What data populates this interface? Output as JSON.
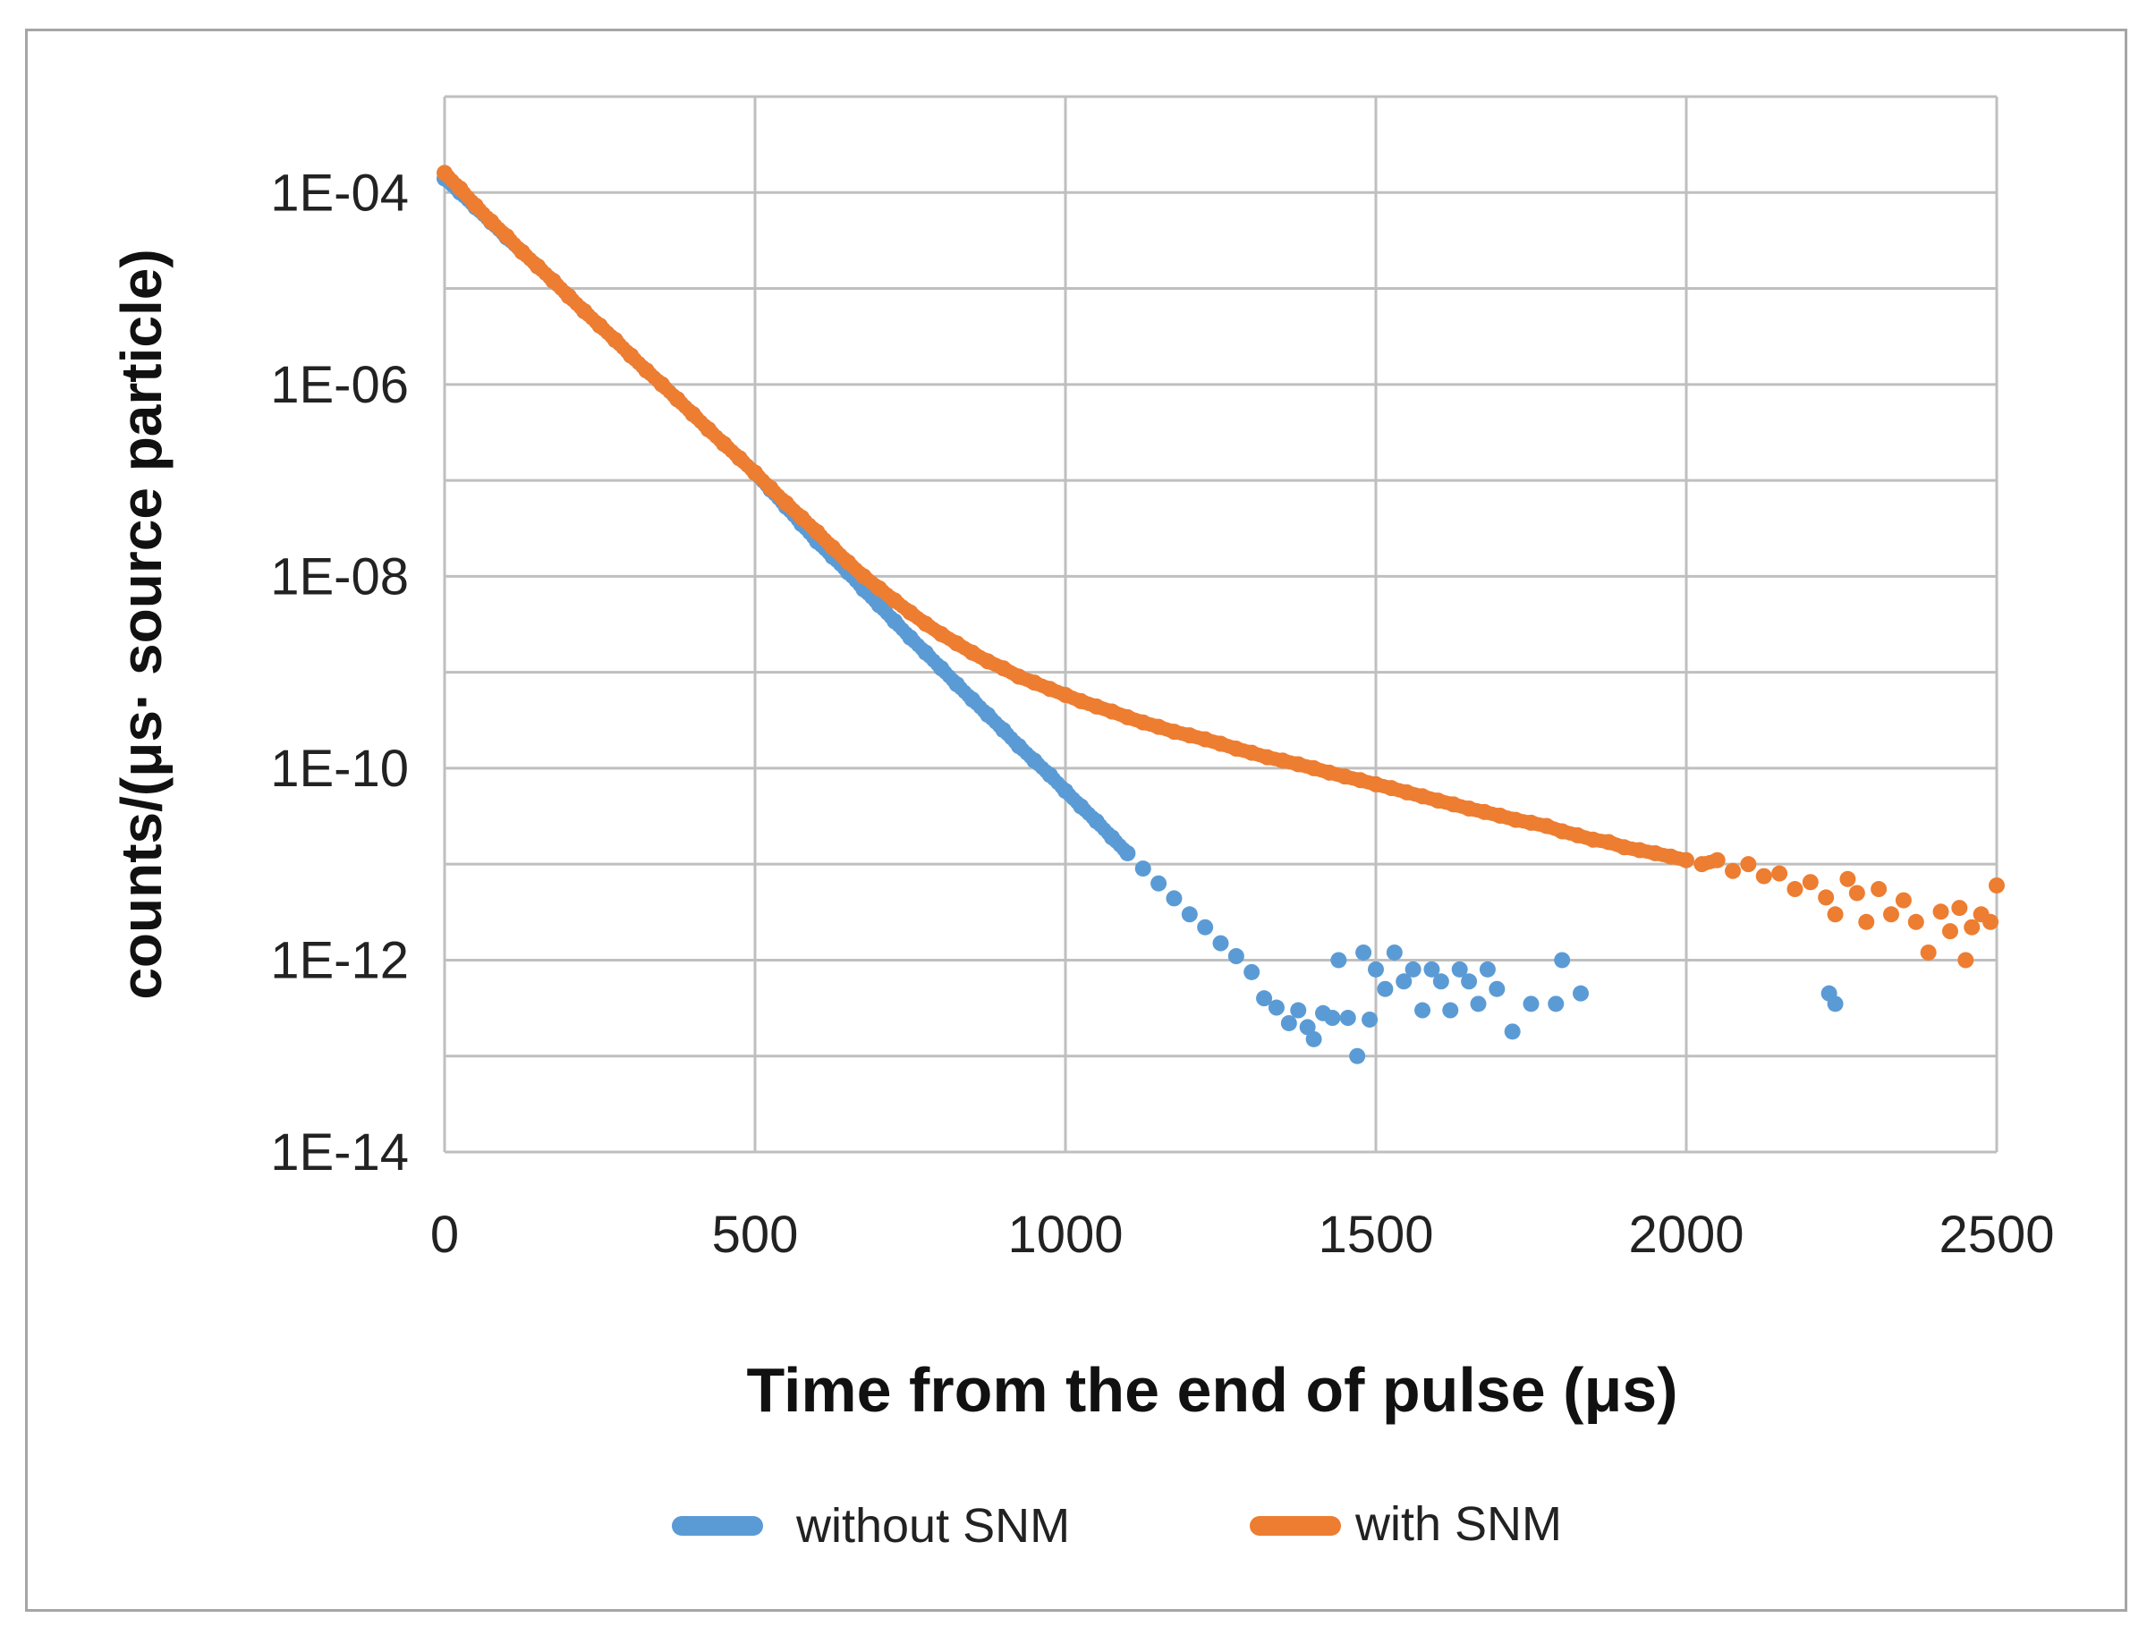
{
  "chart_data": {
    "type": "scatter",
    "title": "",
    "xlabel": "Time from the end of pulse (μs)",
    "ylabel": "counts/(μs· source particle)",
    "xlim": [
      0,
      2500
    ],
    "x_ticks": [
      "0",
      "500",
      "1000",
      "1500",
      "2000",
      "2500"
    ],
    "y_scale": "log",
    "ylim": [
      1e-14,
      0.001
    ],
    "y_ticks": [
      "1E-04",
      "1E-06",
      "1E-08",
      "1E-10",
      "1E-12",
      "1E-14"
    ],
    "grid": true,
    "legend_position": "bottom",
    "series": [
      {
        "name": "without SNM",
        "color": "#5b9bd5",
        "points": [
          [
            0,
            0.00014
          ],
          [
            25,
            0.0001
          ],
          [
            50,
            7e-05
          ],
          [
            75,
            4.9e-05
          ],
          [
            100,
            3.4e-05
          ],
          [
            125,
            2.4e-05
          ],
          [
            150,
            1.7e-05
          ],
          [
            175,
            1.2e-05
          ],
          [
            200,
            8.3e-06
          ],
          [
            225,
            5.8e-06
          ],
          [
            250,
            4.1e-06
          ],
          [
            275,
            2.9e-06
          ],
          [
            300,
            2e-06
          ],
          [
            325,
            1.4e-06
          ],
          [
            350,
            1e-06
          ],
          [
            375,
            7e-07
          ],
          [
            400,
            4.9e-07
          ],
          [
            425,
            3.4e-07
          ],
          [
            450,
            2.4e-07
          ],
          [
            475,
            1.7e-07
          ],
          [
            500,
            1.2e-07
          ],
          [
            525,
            8e-08
          ],
          [
            550,
            5.3e-08
          ],
          [
            575,
            3.5e-08
          ],
          [
            600,
            2.3e-08
          ],
          [
            625,
            1.6e-08
          ],
          [
            650,
            1.1e-08
          ],
          [
            675,
            7.3e-09
          ],
          [
            700,
            5e-09
          ],
          [
            725,
            3.4e-09
          ],
          [
            750,
            2.3e-09
          ],
          [
            775,
            1.6e-09
          ],
          [
            800,
            1.1e-09
          ],
          [
            825,
            7.5e-10
          ],
          [
            850,
            5.2e-10
          ],
          [
            875,
            3.6e-10
          ],
          [
            900,
            2.5e-10
          ],
          [
            925,
            1.7e-10
          ],
          [
            950,
            1.2e-10
          ],
          [
            975,
            8.5e-11
          ],
          [
            1000,
            5.8e-11
          ],
          [
            1025,
            4e-11
          ],
          [
            1050,
            2.8e-11
          ],
          [
            1075,
            1.9e-11
          ],
          [
            1100,
            1.3e-11
          ],
          [
            1125,
            9e-12
          ],
          [
            1150,
            6.3e-12
          ],
          [
            1175,
            4.4e-12
          ],
          [
            1200,
            3e-12
          ],
          [
            1225,
            2.2e-12
          ],
          [
            1250,
            1.5e-12
          ],
          [
            1275,
            1.1e-12
          ],
          [
            1300,
            7.5e-13
          ],
          [
            1320,
            4e-13
          ],
          [
            1340,
            3.2e-13
          ],
          [
            1360,
            2.2e-13
          ],
          [
            1375,
            3e-13
          ],
          [
            1390,
            2e-13
          ],
          [
            1400,
            1.5e-13
          ],
          [
            1415,
            2.8e-13
          ],
          [
            1430,
            2.5e-13
          ],
          [
            1440,
            1e-12
          ],
          [
            1455,
            2.5e-13
          ],
          [
            1470,
            1e-13
          ],
          [
            1480,
            1.2e-12
          ],
          [
            1490,
            2.4e-13
          ],
          [
            1500,
            8e-13
          ],
          [
            1515,
            5e-13
          ],
          [
            1530,
            1.2e-12
          ],
          [
            1545,
            6e-13
          ],
          [
            1560,
            8e-13
          ],
          [
            1575,
            3e-13
          ],
          [
            1590,
            8e-13
          ],
          [
            1605,
            6e-13
          ],
          [
            1620,
            3e-13
          ],
          [
            1635,
            8e-13
          ],
          [
            1650,
            6e-13
          ],
          [
            1665,
            3.5e-13
          ],
          [
            1680,
            8e-13
          ],
          [
            1695,
            5e-13
          ],
          [
            1720,
            1.8e-13
          ],
          [
            1750,
            3.5e-13
          ],
          [
            1790,
            3.5e-13
          ],
          [
            1800,
            1e-12
          ],
          [
            1830,
            4.5e-13
          ],
          [
            2230,
            4.5e-13
          ],
          [
            2240,
            3.5e-13
          ]
        ]
      },
      {
        "name": "with SNM",
        "color": "#ed7d31",
        "points": [
          [
            0,
            0.00016
          ],
          [
            25,
            0.00011
          ],
          [
            50,
            7.3e-05
          ],
          [
            75,
            5e-05
          ],
          [
            100,
            3.5e-05
          ],
          [
            125,
            2.4e-05
          ],
          [
            150,
            1.7e-05
          ],
          [
            175,
            1.2e-05
          ],
          [
            200,
            8.3e-06
          ],
          [
            225,
            5.8e-06
          ],
          [
            250,
            4.1e-06
          ],
          [
            275,
            2.9e-06
          ],
          [
            300,
            2e-06
          ],
          [
            325,
            1.4e-06
          ],
          [
            350,
            1e-06
          ],
          [
            375,
            7e-07
          ],
          [
            400,
            4.9e-07
          ],
          [
            425,
            3.4e-07
          ],
          [
            450,
            2.4e-07
          ],
          [
            475,
            1.7e-07
          ],
          [
            500,
            1.2e-07
          ],
          [
            525,
            8.3e-08
          ],
          [
            550,
            5.8e-08
          ],
          [
            575,
            4.1e-08
          ],
          [
            600,
            2.9e-08
          ],
          [
            625,
            2e-08
          ],
          [
            650,
            1.4e-08
          ],
          [
            675,
            1e-08
          ],
          [
            700,
            7.5e-09
          ],
          [
            725,
            5.6e-09
          ],
          [
            750,
            4.2e-09
          ],
          [
            775,
            3.2e-09
          ],
          [
            800,
            2.5e-09
          ],
          [
            825,
            2e-09
          ],
          [
            850,
            1.6e-09
          ],
          [
            875,
            1.3e-09
          ],
          [
            900,
            1.1e-09
          ],
          [
            925,
            9e-10
          ],
          [
            950,
            7.8e-10
          ],
          [
            975,
            6.7e-10
          ],
          [
            1000,
            5.8e-10
          ],
          [
            1025,
            5e-10
          ],
          [
            1050,
            4.4e-10
          ],
          [
            1075,
            3.9e-10
          ],
          [
            1100,
            3.4e-10
          ],
          [
            1125,
            3e-10
          ],
          [
            1150,
            2.7e-10
          ],
          [
            1175,
            2.4e-10
          ],
          [
            1200,
            2.2e-10
          ],
          [
            1225,
            2e-10
          ],
          [
            1250,
            1.8e-10
          ],
          [
            1275,
            1.6e-10
          ],
          [
            1300,
            1.45e-10
          ],
          [
            1325,
            1.3e-10
          ],
          [
            1350,
            1.2e-10
          ],
          [
            1375,
            1.1e-10
          ],
          [
            1400,
            1e-10
          ],
          [
            1425,
            9e-11
          ],
          [
            1450,
            8.2e-11
          ],
          [
            1475,
            7.5e-11
          ],
          [
            1500,
            6.8e-11
          ],
          [
            1525,
            6.2e-11
          ],
          [
            1550,
            5.6e-11
          ],
          [
            1575,
            5.1e-11
          ],
          [
            1600,
            4.6e-11
          ],
          [
            1625,
            4.2e-11
          ],
          [
            1650,
            3.8e-11
          ],
          [
            1675,
            3.5e-11
          ],
          [
            1700,
            3.2e-11
          ],
          [
            1725,
            2.9e-11
          ],
          [
            1750,
            2.7e-11
          ],
          [
            1775,
            2.5e-11
          ],
          [
            1800,
            2.2e-11
          ],
          [
            1825,
            2e-11
          ],
          [
            1850,
            1.8e-11
          ],
          [
            1875,
            1.7e-11
          ],
          [
            1900,
            1.5e-11
          ],
          [
            1925,
            1.4e-11
          ],
          [
            1950,
            1.3e-11
          ],
          [
            1975,
            1.2e-11
          ],
          [
            2000,
            1.1e-11
          ],
          [
            2025,
            1e-11
          ],
          [
            2050,
            1.1e-11
          ],
          [
            2075,
            8.5e-12
          ],
          [
            2100,
            1e-11
          ],
          [
            2125,
            7.5e-12
          ],
          [
            2150,
            8e-12
          ],
          [
            2175,
            5.5e-12
          ],
          [
            2200,
            6.5e-12
          ],
          [
            2225,
            4.5e-12
          ],
          [
            2240,
            3e-12
          ],
          [
            2260,
            7e-12
          ],
          [
            2275,
            5e-12
          ],
          [
            2290,
            2.5e-12
          ],
          [
            2310,
            5.5e-12
          ],
          [
            2330,
            3e-12
          ],
          [
            2350,
            4.2e-12
          ],
          [
            2370,
            2.5e-12
          ],
          [
            2390,
            1.2e-12
          ],
          [
            2410,
            3.2e-12
          ],
          [
            2425,
            2e-12
          ],
          [
            2440,
            3.5e-12
          ],
          [
            2450,
            1e-12
          ],
          [
            2460,
            2.2e-12
          ],
          [
            2475,
            3e-12
          ],
          [
            2490,
            2.5e-12
          ],
          [
            2500,
            6e-12
          ]
        ]
      }
    ]
  }
}
